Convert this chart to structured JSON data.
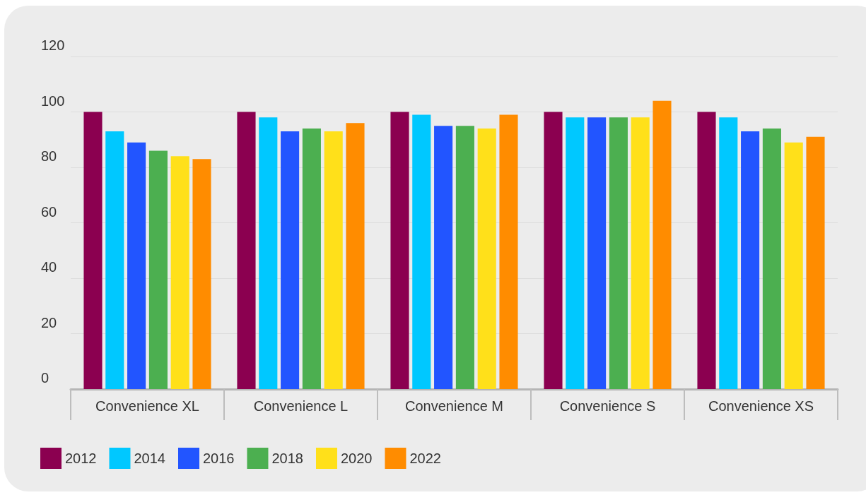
{
  "chart_data": {
    "type": "bar",
    "categories": [
      "Convenience XL",
      "Convenience L",
      "Convenience M",
      "Convenience S",
      "Convenience XS"
    ],
    "series": [
      {
        "name": "2012",
        "color": "#8b0050",
        "values": [
          100,
          100,
          100,
          100,
          100
        ]
      },
      {
        "name": "2014",
        "color": "#00c8ff",
        "values": [
          93,
          98,
          99,
          98,
          98
        ]
      },
      {
        "name": "2016",
        "color": "#2255ff",
        "values": [
          89,
          93,
          95,
          98,
          93
        ]
      },
      {
        "name": "2018",
        "color": "#4caf50",
        "values": [
          86,
          94,
          95,
          98,
          94
        ]
      },
      {
        "name": "2020",
        "color": "#ffe01a",
        "values": [
          84,
          93,
          94,
          98,
          89
        ]
      },
      {
        "name": "2022",
        "color": "#ff8c00",
        "values": [
          83,
          96,
          99,
          104,
          91
        ]
      }
    ],
    "ylim": [
      0,
      120
    ],
    "yticks": [
      0,
      20,
      40,
      60,
      80,
      100,
      120
    ],
    "grid": "y",
    "legend": "bottom left"
  }
}
